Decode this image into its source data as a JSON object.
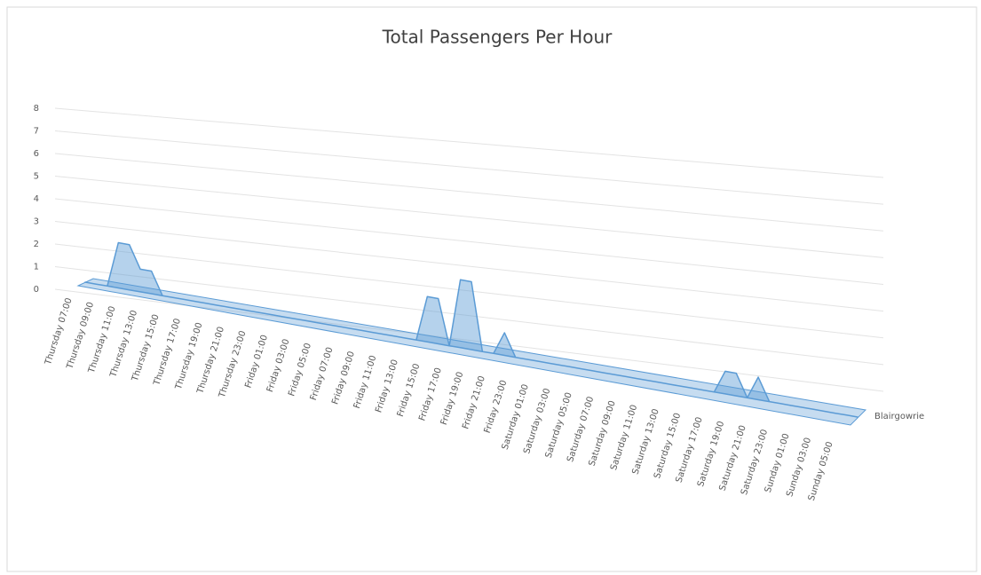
{
  "chart_data": {
    "type": "area",
    "title": "Total Passengers Per Hour",
    "categories": [
      "Thursday 07:00",
      null,
      "Thursday 09:00",
      null,
      "Thursday 11:00",
      null,
      "Thursday 13:00",
      null,
      "Thursday 15:00",
      null,
      "Thursday 17:00",
      null,
      "Thursday 19:00",
      null,
      "Thursday 21:00",
      null,
      "Thursday 23:00",
      null,
      "Friday 01:00",
      null,
      "Friday 03:00",
      null,
      "Friday 05:00",
      null,
      "Friday 07:00",
      null,
      "Friday 09:00",
      null,
      "Friday 11:00",
      null,
      "Friday 13:00",
      null,
      "Friday 15:00",
      null,
      "Friday 17:00",
      null,
      "Friday 19:00",
      null,
      "Friday 21:00",
      null,
      "Friday 23:00",
      null,
      "Saturday 01:00",
      null,
      "Saturday 03:00",
      null,
      "Saturday 05:00",
      null,
      "Saturday 07:00",
      null,
      "Saturday 09:00",
      null,
      "Saturday 11:00",
      null,
      "Saturday 13:00",
      null,
      "Saturday 15:00",
      null,
      "Saturday 17:00",
      null,
      "Saturday 19:00",
      null,
      "Saturday 21:00",
      null,
      "Saturday 23:00",
      null,
      "Sunday 01:00",
      null,
      "Sunday 03:00",
      null,
      "Sunday 05:00"
    ],
    "series": [
      {
        "name": "Blairgowrie",
        "color": "#5b9bd5",
        "values": [
          0,
          0,
          0,
          2,
          2,
          1,
          1,
          0,
          0,
          0,
          0,
          0,
          0,
          0,
          0,
          0,
          0,
          0,
          0,
          0,
          0,
          0,
          0,
          0,
          0,
          0,
          0,
          0,
          0,
          0,
          0,
          2,
          2,
          0,
          3,
          3,
          0,
          0,
          1,
          0,
          0,
          0,
          0,
          0,
          0,
          0,
          0,
          0,
          0,
          0,
          0,
          0,
          0,
          0,
          0,
          0,
          0,
          0,
          1,
          1,
          0,
          1,
          0,
          0,
          0,
          0,
          0,
          0,
          0,
          0,
          0
        ]
      }
    ],
    "ylim": [
      0,
      8
    ],
    "yticks": [
      0,
      1,
      2,
      3,
      4,
      5,
      6,
      7,
      8
    ],
    "grid": true
  }
}
